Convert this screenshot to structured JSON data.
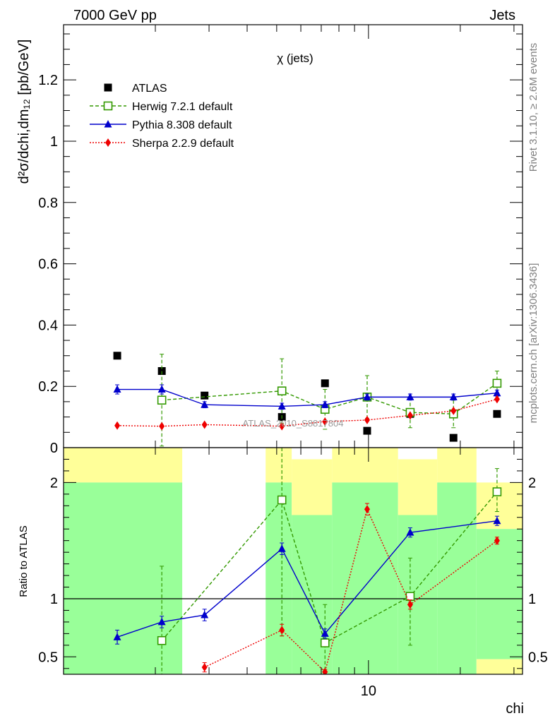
{
  "header": {
    "left": "7000 GeV pp",
    "right": "Jets"
  },
  "sidebar": {
    "rivet": "Rivet 3.1.10, ≥ 2.6M events",
    "mcplots": "mcplots.cern.ch [arXiv:1306.3436]"
  },
  "chart_data": {
    "type": "scatter",
    "title": "χ (jets)",
    "watermark": "ATLAS_2010_S8817804",
    "xlabel": "chi",
    "ylabel_main": "d²σ/dchi,dm₁₂ [pb/GeV]",
    "ylabel_ratio": "Ratio to ATLAS",
    "x_scale": "log",
    "x_ticks": [
      10
    ],
    "main_ylim": [
      0,
      1.38
    ],
    "main_yticks": [
      0,
      0.2,
      0.4,
      0.6,
      0.8,
      1,
      1.2
    ],
    "ratio_ylim": [
      0.35,
      2.3
    ],
    "ratio_yticks_left": [
      0.5,
      1,
      2
    ],
    "ratio_yticks_right": [
      0.5,
      1,
      2
    ],
    "legend_position": "top-left",
    "bins": [
      {
        "lo": 1.0,
        "hi": 1.35
      },
      {
        "lo": 1.35,
        "hi": 1.8
      },
      {
        "lo": 1.8,
        "hi": 2.4
      },
      {
        "lo": 3.1,
        "hi": 4.2
      },
      {
        "lo": 4.2,
        "hi": 5.6
      },
      {
        "lo": 5.6,
        "hi": 7.5
      },
      {
        "lo": 7.5,
        "hi": 10.0
      },
      {
        "lo": 10.0,
        "hi": 13.4
      },
      {
        "lo": 13.4,
        "hi": 17.9
      },
      {
        "lo": 17.9,
        "hi": 24.0
      },
      {
        "lo": 24.0,
        "hi": 32.0
      }
    ],
    "uncertainty_bands": [
      {
        "lo": 1.0,
        "hi": 2.45,
        "green": [
          0.35,
          2.0
        ],
        "yellow": [
          2.0,
          2.3
        ]
      },
      {
        "lo": 4.6,
        "hi": 5.6,
        "green": [
          0.35,
          2.0
        ],
        "yellow": [
          2.0,
          2.3
        ]
      },
      {
        "lo": 5.6,
        "hi": 7.6,
        "green": [
          0.35,
          1.72
        ],
        "yellow": [
          1.72,
          2.2
        ]
      },
      {
        "lo": 7.6,
        "hi": 12.5,
        "green": [
          0.35,
          2.0
        ],
        "yellow": [
          2.0,
          2.3
        ]
      },
      {
        "lo": 12.5,
        "hi": 16.8,
        "green": [
          0.35,
          1.72
        ],
        "yellow": [
          1.72,
          2.2
        ]
      },
      {
        "lo": 16.8,
        "hi": 22.6,
        "green": [
          0.35,
          2.0
        ],
        "yellow": [
          2.0,
          2.3
        ]
      },
      {
        "lo": 22.6,
        "hi": 32.0,
        "green": [
          0.48,
          1.6
        ],
        "yellow": [
          1.6,
          2.0
        ]
      },
      {
        "lo": 22.6,
        "hi": 32.0,
        "green": [
          0.35,
          0.35
        ],
        "yellow": [
          0.35,
          0.48
        ]
      }
    ],
    "series": [
      {
        "name": "ATLAS",
        "color": "#000000",
        "style": "points",
        "marker": "square",
        "x": [
          1.5,
          2.1,
          2.9,
          5.2,
          7.2,
          9.9,
          13.7,
          19.0,
          26.4
        ],
        "y": [
          0.3,
          0.25,
          0.17,
          0.1,
          0.21,
          0.055,
          0.11,
          0.032,
          0.11
        ]
      },
      {
        "name": "Herwig 7.2.1 default",
        "color": "#339900",
        "style": "dashed",
        "marker": "open-square",
        "x": [
          2.1,
          5.2,
          7.2,
          9.9,
          13.7,
          19.0,
          26.4
        ],
        "y": [
          0.155,
          0.185,
          0.125,
          0.165,
          0.115,
          0.11,
          0.21
        ],
        "err": [
          0.15,
          0.105,
          0.065,
          0.07,
          0.05,
          0.045,
          0.04
        ],
        "ratio_x": [
          2.1,
          5.2,
          7.2,
          13.7,
          26.4
        ],
        "ratio": [
          0.64,
          1.85,
          0.62,
          1.02,
          1.92
        ],
        "ratio_err": [
          [
            0.35,
            1.28
          ],
          [
            0.68,
            2.3
          ],
          [
            0.35,
            0.95
          ],
          [
            0.6,
            1.35
          ],
          [
            1.75,
            2.12
          ]
        ]
      },
      {
        "name": "Pythia 8.308 default",
        "color": "#0000cc",
        "style": "solid",
        "marker": "filled-triangle",
        "x": [
          1.5,
          2.1,
          2.9,
          5.2,
          7.2,
          9.9,
          13.7,
          19.0,
          26.4
        ],
        "y": [
          0.19,
          0.19,
          0.14,
          0.135,
          0.14,
          0.165,
          0.165,
          0.165,
          0.178
        ],
        "err": [
          0.015,
          0.015,
          0.01,
          0.01,
          0.01,
          0.01,
          0.01,
          0.01,
          0.01
        ],
        "ratio_x": [
          1.5,
          2.1,
          2.9,
          5.2,
          7.2,
          13.7,
          26.4
        ],
        "ratio": [
          0.67,
          0.8,
          0.86,
          1.43,
          0.7,
          1.57,
          1.67
        ],
        "ratio_err": [
          0.06,
          0.05,
          0.05,
          0.05,
          0.04,
          0.04,
          0.04
        ]
      },
      {
        "name": "Sherpa 2.2.9 default",
        "color": "#ee0000",
        "style": "dotted",
        "marker": "filled-diamond",
        "x": [
          1.5,
          2.1,
          2.9,
          5.2,
          7.2,
          9.9,
          13.7,
          19.0,
          26.4
        ],
        "y": [
          0.072,
          0.07,
          0.075,
          0.07,
          0.085,
          0.09,
          0.105,
          0.12,
          0.158
        ],
        "ratio_x": [
          2.9,
          5.2,
          7.2,
          9.9,
          13.7,
          26.4
        ],
        "ratio": [
          0.41,
          0.73,
          0.37,
          1.77,
          0.95,
          1.5
        ],
        "ratio_err": [
          0.04,
          0.05,
          0.02,
          0.05,
          0.04,
          0.03
        ]
      }
    ]
  }
}
